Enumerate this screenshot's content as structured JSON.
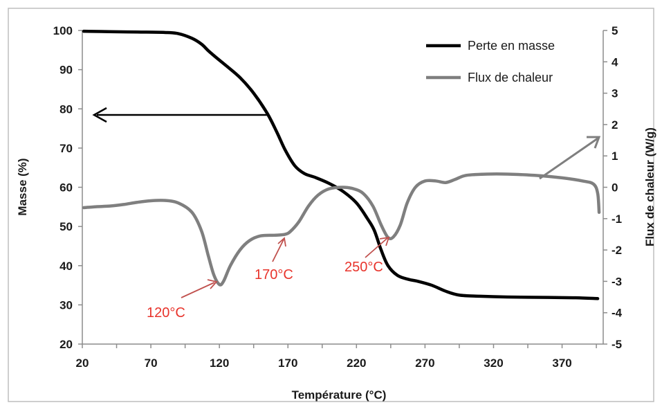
{
  "chart_data": {
    "type": "line",
    "xlabel": "Température (°C)",
    "ylabel_left": "Masse (%)",
    "ylabel_right": "Flux de chaleur (W/g)",
    "xlim": [
      20,
      400
    ],
    "ylim_left": [
      20,
      100
    ],
    "ylim_right": [
      -5,
      5
    ],
    "x_ticks": [
      20,
      70,
      120,
      170,
      220,
      270,
      320,
      370
    ],
    "y_left_ticks": [
      20,
      30,
      40,
      50,
      60,
      70,
      80,
      90,
      100
    ],
    "y_right_ticks": [
      -5,
      -4,
      -3,
      -2,
      -1,
      0,
      1,
      2,
      3,
      4,
      5
    ],
    "grid": false,
    "legend_position": "top-right",
    "series": [
      {
        "name": "Perte en masse",
        "axis": "left",
        "color": "#000000",
        "points": [
          [
            21,
            99.8
          ],
          [
            40,
            99.7
          ],
          [
            60,
            99.6
          ],
          [
            80,
            99.5
          ],
          [
            90,
            99.2
          ],
          [
            100,
            98.0
          ],
          [
            107,
            96.5
          ],
          [
            112,
            94.8
          ],
          [
            118,
            93.0
          ],
          [
            125,
            91.0
          ],
          [
            135,
            88.0
          ],
          [
            145,
            84.0
          ],
          [
            155,
            78.8
          ],
          [
            162,
            74.0
          ],
          [
            168,
            69.5
          ],
          [
            175,
            65.5
          ],
          [
            182,
            63.5
          ],
          [
            190,
            62.5
          ],
          [
            200,
            61.0
          ],
          [
            210,
            59.0
          ],
          [
            220,
            56.0
          ],
          [
            228,
            52.0
          ],
          [
            233,
            49.0
          ],
          [
            238,
            44.0
          ],
          [
            243,
            40.0
          ],
          [
            250,
            37.5
          ],
          [
            258,
            36.5
          ],
          [
            265,
            36.0
          ],
          [
            275,
            35.0
          ],
          [
            285,
            33.5
          ],
          [
            295,
            32.5
          ],
          [
            310,
            32.2
          ],
          [
            330,
            32.0
          ],
          [
            360,
            31.9
          ],
          [
            380,
            31.8
          ],
          [
            396,
            31.6
          ]
        ]
      },
      {
        "name": "Flux de chaleur",
        "axis": "right",
        "color": "#7f7f7f",
        "points": [
          [
            21,
            -0.65
          ],
          [
            30,
            -0.62
          ],
          [
            40,
            -0.6
          ],
          [
            50,
            -0.55
          ],
          [
            60,
            -0.48
          ],
          [
            70,
            -0.43
          ],
          [
            80,
            -0.42
          ],
          [
            90,
            -0.5
          ],
          [
            100,
            -0.8
          ],
          [
            107,
            -1.4
          ],
          [
            112,
            -2.2
          ],
          [
            116,
            -2.8
          ],
          [
            120,
            -3.1
          ],
          [
            123,
            -3.0
          ],
          [
            128,
            -2.5
          ],
          [
            135,
            -2.0
          ],
          [
            142,
            -1.7
          ],
          [
            150,
            -1.55
          ],
          [
            160,
            -1.53
          ],
          [
            168,
            -1.5
          ],
          [
            172,
            -1.4
          ],
          [
            178,
            -1.1
          ],
          [
            185,
            -0.6
          ],
          [
            192,
            -0.25
          ],
          [
            200,
            -0.05
          ],
          [
            210,
            0.0
          ],
          [
            218,
            -0.05
          ],
          [
            225,
            -0.2
          ],
          [
            232,
            -0.6
          ],
          [
            238,
            -1.2
          ],
          [
            243,
            -1.6
          ],
          [
            247,
            -1.58
          ],
          [
            252,
            -1.2
          ],
          [
            257,
            -0.5
          ],
          [
            263,
            0.0
          ],
          [
            270,
            0.2
          ],
          [
            278,
            0.2
          ],
          [
            285,
            0.15
          ],
          [
            292,
            0.25
          ],
          [
            300,
            0.38
          ],
          [
            315,
            0.42
          ],
          [
            330,
            0.42
          ],
          [
            350,
            0.38
          ],
          [
            370,
            0.3
          ],
          [
            385,
            0.2
          ],
          [
            393,
            0.1
          ],
          [
            396,
            -0.2
          ],
          [
            397,
            -0.8
          ]
        ]
      }
    ],
    "annotations": [
      {
        "text": "120°C",
        "temp": 120
      },
      {
        "text": "170°C",
        "temp": 170
      },
      {
        "text": "250°C",
        "temp": 250
      }
    ]
  }
}
